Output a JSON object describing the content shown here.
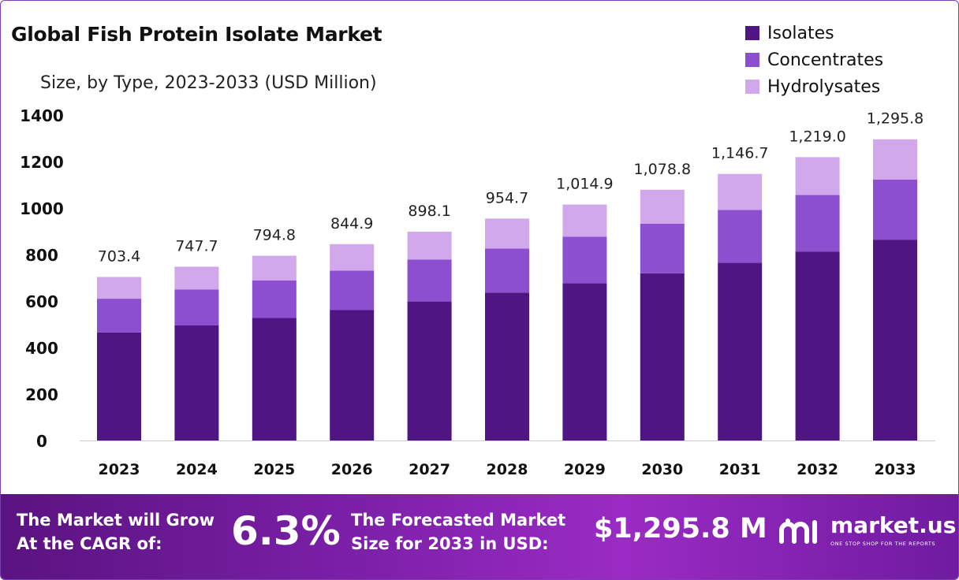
{
  "header": {
    "title": "Global Fish Protein Isolate Market",
    "subtitle": "Size, by Type, 2023-2033 (USD Million)"
  },
  "colors": {
    "isolates": "#4f1583",
    "concentrates": "#8c4fd0",
    "hydrolysates": "#d1a8ec",
    "frame": "#7b3fb0"
  },
  "chart_data": {
    "type": "bar",
    "stacked": true,
    "title": "Global Fish Protein Isolate Market",
    "subtitle": "Size, by Type, 2023-2033 (USD Million)",
    "xlabel": "",
    "ylabel": "",
    "categories": [
      "2023",
      "2024",
      "2025",
      "2026",
      "2027",
      "2028",
      "2029",
      "2030",
      "2031",
      "2032",
      "2033"
    ],
    "ylim": [
      0,
      1400
    ],
    "yticks": [
      "0",
      "200",
      "400",
      "600",
      "800",
      "1000",
      "1200",
      "1400"
    ],
    "grid": false,
    "legend_position": "top-right",
    "series": [
      {
        "name": "Isolates",
        "values": [
          465,
          495,
          527,
          561,
          598,
          636,
          677,
          719,
          765,
          813,
          864
        ]
      },
      {
        "name": "Concentrates",
        "values": [
          145,
          155,
          162,
          170,
          180,
          190,
          200,
          214,
          227,
          243,
          258
        ]
      },
      {
        "name": "Hydrolysates",
        "values": [
          93.4,
          97.7,
          105.8,
          113.9,
          120.1,
          128.7,
          137.9,
          145.8,
          154.7,
          163.0,
          173.8
        ]
      }
    ],
    "totals": [
      "703.4",
      "747.7",
      "794.8",
      "844.9",
      "898.1",
      "954.7",
      "1,014.9",
      "1,078.8",
      "1,146.7",
      "1,219.0",
      "1,295.8"
    ]
  },
  "banner": {
    "cagr_label_line1": "The Market will Grow",
    "cagr_label_line2": "At the CAGR of:",
    "cagr_value": "6.3%",
    "forecast_label_line1": "The Forecasted Market",
    "forecast_label_line2": "Size for 2033 in USD:",
    "forecast_value": "$1,295.8 M",
    "brand_name": "market.us",
    "brand_tagline": "ONE STOP SHOP FOR THE REPORTS",
    "brand_icon": "market-us-logo-icon"
  }
}
